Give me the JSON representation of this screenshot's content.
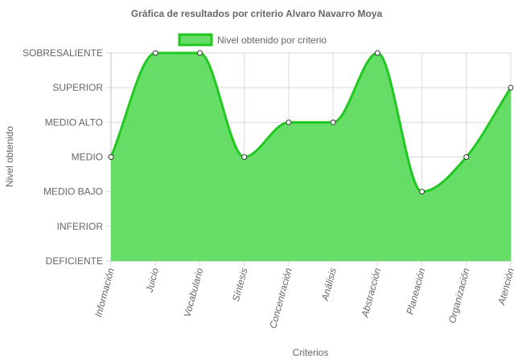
{
  "chart_data": {
    "type": "area",
    "title": "Gráfica de resultados por criterio Alvaro Navarro Moya",
    "xlabel": "Criterios",
    "ylabel": "Nivel obtenido",
    "y_levels": [
      "DEFICIENTE",
      "INFERIOR",
      "MEDIO BAJO",
      "MEDIO",
      "MEDIO ALTO",
      "SUPERIOR",
      "SOBRESALIENTE"
    ],
    "categories": [
      "Información",
      "Juicio",
      "Vocabulario",
      "Síntesis",
      "Concentración",
      "Análisis",
      "Abstracción",
      "Planeación",
      "Organización",
      "Atención"
    ],
    "series": [
      {
        "name": "Nivel obtenido por criterio",
        "values": [
          "MEDIO",
          "SOBRESALIENTE",
          "SOBRESALIENTE",
          "MEDIO",
          "MEDIO ALTO",
          "MEDIO ALTO",
          "SOBRESALIENTE",
          "MEDIO BAJO",
          "MEDIO",
          "SUPERIOR"
        ]
      }
    ],
    "legend_position": "top",
    "grid": true,
    "fill_color": "#66dd66",
    "line_color": "#22c822",
    "point_fill": "#ffffff",
    "point_stroke": "#333333"
  }
}
